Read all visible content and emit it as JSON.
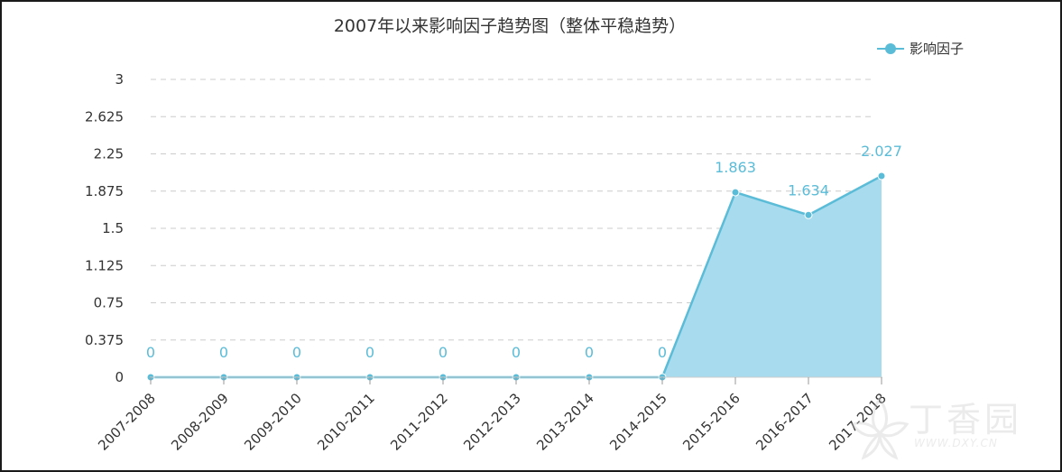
{
  "chart_data": {
    "type": "area",
    "title": "2007年以来影响因子趋势图（整体平稳趋势）",
    "categories": [
      "2007-2008",
      "2008-2009",
      "2009-2010",
      "2010-2011",
      "2011-2012",
      "2012-2013",
      "2013-2014",
      "2014-2015",
      "2015-2016",
      "2016-2017",
      "2017-2018"
    ],
    "series": [
      {
        "name": "影响因子",
        "values": [
          0,
          0,
          0,
          0,
          0,
          0,
          0,
          0,
          1.863,
          1.634,
          2.027
        ],
        "data_labels": [
          "0",
          "0",
          "0",
          "0",
          "0",
          "0",
          "0",
          "0",
          "1.863",
          "1.634",
          "2.027"
        ],
        "color": "#5bbcd8",
        "fill_color": "#a8dbee",
        "fill_start_index": 7
      }
    ],
    "ylim": [
      0,
      3
    ],
    "y_ticks": [
      "0",
      "0.375",
      "0.75",
      "1.125",
      "1.5",
      "1.875",
      "2.25",
      "2.625",
      "3"
    ],
    "xlabel": "",
    "ylabel": "",
    "grid": true,
    "legend_placement": "top-right"
  },
  "watermark": {
    "text_cn": "丁香园",
    "text_en": "WWW.DXY.CN",
    "icon": "dxy-flower-logo"
  }
}
